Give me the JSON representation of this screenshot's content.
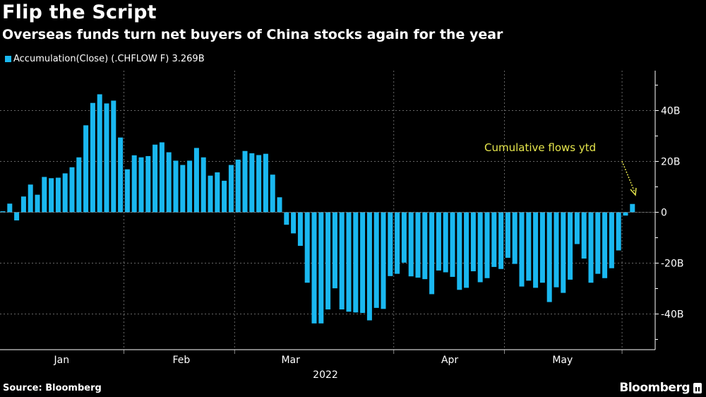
{
  "header": {
    "title": "Flip the Script",
    "subtitle": "Overseas funds turn net buyers of China stocks again for the year"
  },
  "legend": {
    "label": "Accumulation(Close) (.CHFLOW F) 3.269B"
  },
  "footer": {
    "source": "Source: Bloomberg",
    "brand": "Bloomberg"
  },
  "colors": {
    "bar": "#1ab8f0",
    "annotation": "#e6e64c",
    "grid": "#666666"
  },
  "chart_data": {
    "type": "bar",
    "title": "Flip the Script",
    "series_name": "Accumulation(Close) (.CHFLOW F)",
    "last_value_label": "3.269B",
    "unit": "B",
    "values": [
      0.4,
      3.4,
      -3.2,
      6.2,
      10.9,
      6.9,
      13.9,
      13.4,
      13.6,
      15.3,
      17.7,
      21.6,
      34.2,
      43.0,
      46.4,
      42.8,
      43.9,
      29.4,
      16.9,
      22.4,
      21.6,
      22.1,
      26.6,
      27.5,
      23.6,
      20.3,
      18.6,
      20.3,
      25.3,
      21.6,
      14.4,
      15.7,
      12.4,
      18.6,
      20.7,
      24.1,
      23.2,
      22.5,
      23.0,
      14.8,
      5.9,
      -4.9,
      -8.3,
      -13.2,
      -27.7,
      -43.7,
      -43.7,
      -38.2,
      -29.9,
      -38.2,
      -39.1,
      -39.4,
      -39.6,
      -42.5,
      -37.6,
      -38.0,
      -25.1,
      -24.2,
      -19.8,
      -25.2,
      -25.7,
      -26.3,
      -32.2,
      -22.9,
      -23.6,
      -25.4,
      -30.5,
      -29.7,
      -23.2,
      -27.5,
      -25.9,
      -21.5,
      -22.3,
      -17.9,
      -20.3,
      -29.2,
      -26.9,
      -29.7,
      -27.7,
      -35.3,
      -29.5,
      -31.7,
      -26.5,
      -12.5,
      -18.2,
      -27.7,
      -24.2,
      -25.9,
      -22.0,
      -15.0,
      -1.3,
      3.269
    ],
    "ylim": [
      -52,
      55
    ],
    "yticks": [
      {
        "value": 40,
        "label": "40B"
      },
      {
        "value": 20,
        "label": "20B"
      },
      {
        "value": 0,
        "label": "0"
      },
      {
        "value": -20,
        "label": "-20B"
      },
      {
        "value": -40,
        "label": "-40B"
      }
    ],
    "month_boundaries_bar_index": [
      18,
      34,
      57,
      73,
      90
    ],
    "xlabels": [
      {
        "label": "Jan",
        "bar_index": 8.5
      },
      {
        "label": "Feb",
        "bar_index": 25.8
      },
      {
        "label": "Mar",
        "bar_index": 41.6
      },
      {
        "label": "Apr",
        "bar_index": 64.6
      },
      {
        "label": "May",
        "bar_index": 80.9
      }
    ],
    "xlabel": "2022",
    "annotation": "Cumulative flows ytd",
    "grid": true,
    "legend_position": "top-left"
  }
}
